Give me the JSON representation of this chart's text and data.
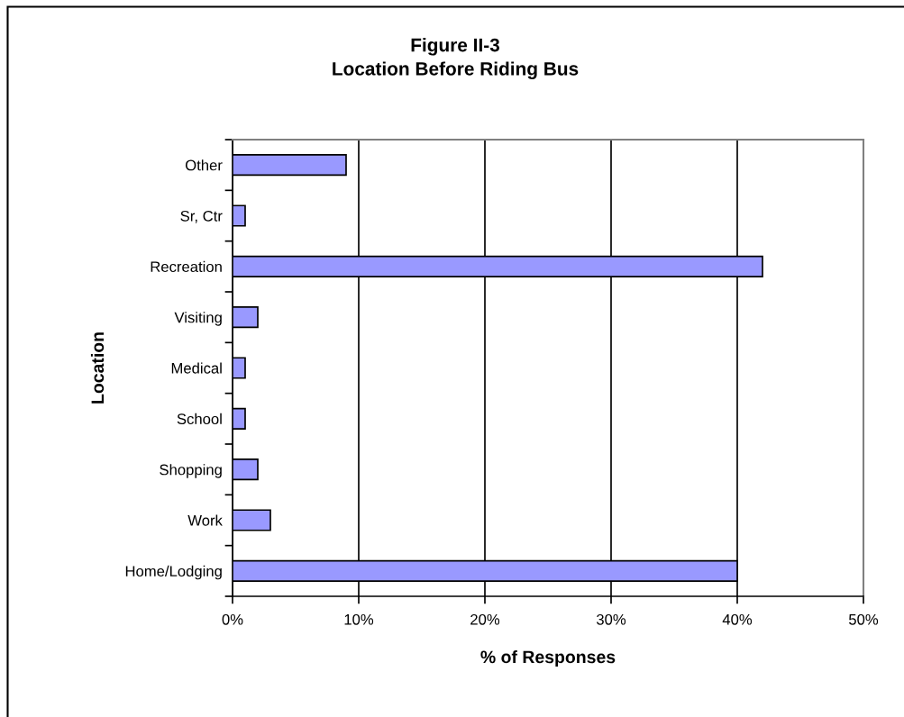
{
  "chart_data": {
    "type": "bar",
    "orientation": "horizontal",
    "title": "Figure II-3\nLocation Before Riding Bus",
    "xlabel": "% of Responses",
    "ylabel": "Location",
    "categories": [
      "Other",
      "Sr, Ctr",
      "Recreation",
      "Visiting",
      "Medical",
      "School",
      "Shopping",
      "Work",
      "Home/Lodging"
    ],
    "values": [
      9,
      1,
      42,
      2,
      1,
      1,
      2,
      3,
      40
    ],
    "color": "#9999ff",
    "xlim": [
      0,
      50
    ],
    "xticks": [
      {
        "value": 0,
        "label": "0%"
      },
      {
        "value": 10,
        "label": "10%"
      },
      {
        "value": 20,
        "label": "20%"
      },
      {
        "value": 30,
        "label": "30%"
      },
      {
        "value": 40,
        "label": "40%"
      },
      {
        "value": 50,
        "label": "50%"
      }
    ],
    "grid": "x",
    "legend": false
  }
}
